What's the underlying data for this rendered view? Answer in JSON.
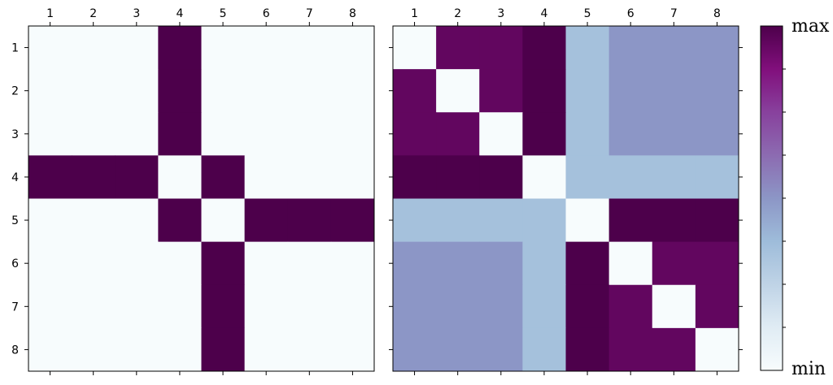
{
  "chart_data": {
    "type": "heatmap",
    "colorbar": {
      "max_label": "max",
      "min_label": "min",
      "colormap": "BuPu"
    },
    "panels": [
      {
        "name": "left",
        "x_ticks": [
          "1",
          "2",
          "3",
          "4",
          "5",
          "6",
          "7",
          "8"
        ],
        "y_ticks": [
          "1",
          "2",
          "3",
          "4",
          "5",
          "6",
          "7",
          "8"
        ],
        "values": [
          [
            0,
            0,
            0,
            1,
            0,
            0,
            0,
            0
          ],
          [
            0,
            0,
            0,
            1,
            0,
            0,
            0,
            0
          ],
          [
            0,
            0,
            0,
            1,
            0,
            0,
            0,
            0
          ],
          [
            1,
            1,
            1,
            0,
            1,
            0,
            0,
            0
          ],
          [
            0,
            0,
            0,
            1,
            0,
            1,
            1,
            1
          ],
          [
            0,
            0,
            0,
            0,
            1,
            0,
            0,
            0
          ],
          [
            0,
            0,
            0,
            0,
            1,
            0,
            0,
            0
          ],
          [
            0,
            0,
            0,
            0,
            1,
            0,
            0,
            0
          ]
        ]
      },
      {
        "name": "right",
        "x_ticks": [
          "1",
          "2",
          "3",
          "4",
          "5",
          "6",
          "7",
          "8"
        ],
        "y_ticks": [
          "1",
          "2",
          "3",
          "4",
          "5",
          "6",
          "7",
          "8"
        ],
        "values": [
          [
            0,
            0.95,
            0.95,
            1,
            0.35,
            0.5,
            0.5,
            0.5
          ],
          [
            0.95,
            0,
            0.95,
            1,
            0.35,
            0.5,
            0.5,
            0.5
          ],
          [
            0.95,
            0.95,
            0,
            1,
            0.35,
            0.5,
            0.5,
            0.5
          ],
          [
            1,
            1,
            1,
            0,
            0.35,
            0.35,
            0.35,
            0.35
          ],
          [
            0.35,
            0.35,
            0.35,
            0.35,
            0,
            1,
            1,
            1
          ],
          [
            0.5,
            0.5,
            0.5,
            0.35,
            1,
            0,
            0.95,
            0.95
          ],
          [
            0.5,
            0.5,
            0.5,
            0.35,
            1,
            0.95,
            0,
            0.95
          ],
          [
            0.5,
            0.5,
            0.5,
            0.35,
            1,
            0.95,
            0.95,
            0
          ]
        ]
      }
    ]
  }
}
